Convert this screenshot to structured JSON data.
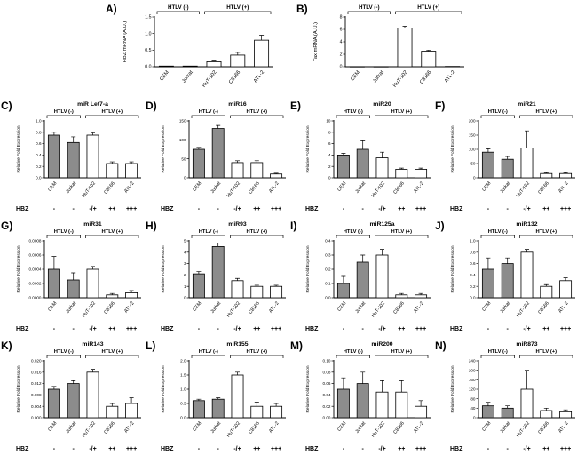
{
  "figure": {
    "background": "#ffffff",
    "hbz_annotation": {
      "label": "HBZ",
      "values": [
        "-",
        "-",
        "-/+",
        "++",
        "+++"
      ]
    },
    "colors": {
      "bar_gray": "#8c8c8c",
      "bar_white": "#ffffff",
      "axis": "#000000"
    }
  },
  "chart_data": [
    {
      "panel": "A)",
      "row": 0,
      "size": "large",
      "type": "bar",
      "title": "",
      "ylabel": "HBZ mRNA (A.U.)",
      "categories": [
        "CEM",
        "Jurkat",
        "HuT-102",
        "C8166",
        "ATL-2"
      ],
      "values": [
        0.02,
        0.02,
        0.15,
        0.35,
        0.8
      ],
      "errors": [
        0,
        0,
        0.02,
        0.08,
        0.15
      ],
      "ylim": [
        0,
        1.5
      ],
      "yticks": [
        0,
        0.5,
        1,
        1.5
      ],
      "ytick_labels": [
        "0.0",
        "0.5",
        "1.0",
        "1.5"
      ],
      "groups": [
        {
          "label": "HTLV (-)",
          "span": [
            0,
            1
          ]
        },
        {
          "label": "HTLV (+)",
          "span": [
            2,
            4
          ]
        }
      ],
      "bar_colors": [
        "#ffffff",
        "#ffffff",
        "#ffffff",
        "#ffffff",
        "#ffffff"
      ],
      "hbz": false
    },
    {
      "panel": "B)",
      "row": 0,
      "size": "large",
      "type": "bar",
      "title": "",
      "ylabel": "Tax mRNA (A.U.)",
      "categories": [
        "CEM",
        "Jurkat",
        "HuT-102",
        "C8166",
        "ATL-2"
      ],
      "values": [
        0.02,
        0.02,
        6.2,
        2.5,
        0.05
      ],
      "errors": [
        0,
        0,
        0.3,
        0.15,
        0
      ],
      "ylim": [
        0,
        8
      ],
      "yticks": [
        0,
        2,
        4,
        6,
        8
      ],
      "ytick_labels": [
        "0",
        "2",
        "4",
        "6",
        "8"
      ],
      "groups": [
        {
          "label": "HTLV (-)",
          "span": [
            0,
            1
          ]
        },
        {
          "label": "HTLV (+)",
          "span": [
            2,
            4
          ]
        }
      ],
      "bar_colors": [
        "#ffffff",
        "#ffffff",
        "#ffffff",
        "#ffffff",
        "#ffffff"
      ],
      "hbz": false
    },
    {
      "panel": "C)",
      "row": 1,
      "size": "small",
      "type": "bar",
      "title": "miR Let7-a",
      "ylabel": "Relative Fold Expression",
      "categories": [
        "CEM",
        "Jurkat",
        "HuT-102",
        "C8166",
        "ATL-2"
      ],
      "values": [
        0.75,
        0.62,
        0.75,
        0.25,
        0.25
      ],
      "errors": [
        0.05,
        0.1,
        0.04,
        0.03,
        0.03
      ],
      "ylim": [
        0,
        1
      ],
      "yticks": [
        0,
        0.2,
        0.4,
        0.6,
        0.8,
        1
      ],
      "ytick_labels": [
        "0.0",
        "0.2",
        "0.4",
        "0.6",
        "0.8",
        "1.0"
      ],
      "groups": [
        {
          "label": "HTLV (-)",
          "span": [
            0,
            1
          ]
        },
        {
          "label": "HTLV (+)",
          "span": [
            2,
            4
          ]
        }
      ],
      "bar_colors": [
        "#8c8c8c",
        "#8c8c8c",
        "#ffffff",
        "#ffffff",
        "#ffffff"
      ],
      "hbz": true
    },
    {
      "panel": "D)",
      "row": 1,
      "size": "small",
      "type": "bar",
      "title": "miR16",
      "ylabel": "Relative Fold Expression",
      "categories": [
        "CEM",
        "Jurkat",
        "HuT-102",
        "C8166",
        "ATL-2"
      ],
      "values": [
        75,
        130,
        40,
        40,
        10
      ],
      "errors": [
        5,
        8,
        5,
        5,
        2
      ],
      "ylim": [
        0,
        150
      ],
      "yticks": [
        0,
        50,
        100,
        150
      ],
      "ytick_labels": [
        "0",
        "50",
        "100",
        "150"
      ],
      "groups": [
        {
          "label": "HTLV (-)",
          "span": [
            0,
            1
          ]
        },
        {
          "label": "HTLV (+)",
          "span": [
            2,
            4
          ]
        }
      ],
      "bar_colors": [
        "#8c8c8c",
        "#8c8c8c",
        "#ffffff",
        "#ffffff",
        "#ffffff"
      ],
      "hbz": true
    },
    {
      "panel": "E)",
      "row": 1,
      "size": "small",
      "type": "bar",
      "title": "miR20",
      "ylabel": "Relative Fold Expression",
      "categories": [
        "CEM",
        "Jurkat",
        "HuT-102",
        "C8166",
        "ATL-2"
      ],
      "values": [
        4,
        5,
        3.5,
        1.5,
        1.5
      ],
      "errors": [
        0.3,
        1.5,
        1,
        0.2,
        0.2
      ],
      "ylim": [
        0,
        10
      ],
      "yticks": [
        0,
        2,
        4,
        6,
        8,
        10
      ],
      "ytick_labels": [
        "0",
        "2",
        "4",
        "6",
        "8",
        "10"
      ],
      "groups": [
        {
          "label": "HTLV (-)",
          "span": [
            0,
            1
          ]
        },
        {
          "label": "HTLV (+)",
          "span": [
            2,
            4
          ]
        }
      ],
      "bar_colors": [
        "#8c8c8c",
        "#8c8c8c",
        "#ffffff",
        "#ffffff",
        "#ffffff"
      ],
      "hbz": true
    },
    {
      "panel": "F)",
      "row": 1,
      "size": "small",
      "type": "bar",
      "title": "miR21",
      "ylabel": "Relative Fold Expression",
      "categories": [
        "CEM",
        "Jurkat",
        "HuT-102",
        "C8166",
        "ATL-2"
      ],
      "values": [
        90,
        65,
        105,
        15,
        15
      ],
      "errors": [
        12,
        10,
        60,
        3,
        3
      ],
      "ylim": [
        0,
        200
      ],
      "yticks": [
        0,
        50,
        100,
        150,
        200
      ],
      "ytick_labels": [
        "0",
        "50",
        "100",
        "150",
        "200"
      ],
      "groups": [
        {
          "label": "HTLV (-)",
          "span": [
            0,
            1
          ]
        },
        {
          "label": "HTLV (+)",
          "span": [
            2,
            4
          ]
        }
      ],
      "bar_colors": [
        "#8c8c8c",
        "#8c8c8c",
        "#ffffff",
        "#ffffff",
        "#ffffff"
      ],
      "hbz": true
    },
    {
      "panel": "G)",
      "row": 2,
      "size": "small",
      "type": "bar",
      "title": "miR31",
      "ylabel": "Relative Fold Expression",
      "categories": [
        "CEM",
        "Jurkat",
        "HuT-102",
        "C8166",
        "ATL-2"
      ],
      "values": [
        0.0004,
        0.00025,
        0.0004,
        4e-05,
        7e-05
      ],
      "errors": [
        0.00018,
        0.0001,
        4e-05,
        2e-05,
        3e-05
      ],
      "ylim": [
        0,
        0.0008
      ],
      "yticks": [
        0,
        0.0002,
        0.0004,
        0.0006,
        0.0008
      ],
      "ytick_labels": [
        "0.0000",
        "0.0002",
        "0.0004",
        "0.0006",
        "0.0008"
      ],
      "groups": [
        {
          "label": "HTLV (-)",
          "span": [
            0,
            1
          ]
        },
        {
          "label": "HTLV (+)",
          "span": [
            2,
            4
          ]
        }
      ],
      "bar_colors": [
        "#8c8c8c",
        "#8c8c8c",
        "#ffffff",
        "#ffffff",
        "#ffffff"
      ],
      "hbz": true
    },
    {
      "panel": "H)",
      "row": 2,
      "size": "small",
      "type": "bar",
      "title": "miR93",
      "ylabel": "Relative Fold Expression",
      "categories": [
        "CEM",
        "Jurkat",
        "HuT-102",
        "C8166",
        "ATL-2"
      ],
      "values": [
        2.1,
        4.5,
        1.5,
        1,
        1
      ],
      "errors": [
        0.2,
        0.3,
        0.2,
        0.1,
        0.1
      ],
      "ylim": [
        0,
        5
      ],
      "yticks": [
        0,
        1,
        2,
        3,
        4,
        5
      ],
      "ytick_labels": [
        "0",
        "1",
        "2",
        "3",
        "4",
        "5"
      ],
      "groups": [
        {
          "label": "HTLV (-)",
          "span": [
            0,
            1
          ]
        },
        {
          "label": "HTLV (+)",
          "span": [
            2,
            4
          ]
        }
      ],
      "bar_colors": [
        "#8c8c8c",
        "#8c8c8c",
        "#ffffff",
        "#ffffff",
        "#ffffff"
      ],
      "hbz": true
    },
    {
      "panel": "I)",
      "row": 2,
      "size": "small",
      "type": "bar",
      "title": "miR125a",
      "ylabel": "Relative Fold Expression",
      "categories": [
        "CEM",
        "Jurkat",
        "HuT-102",
        "C8166",
        "ATL-2"
      ],
      "values": [
        0.1,
        0.25,
        0.3,
        0.02,
        0.02
      ],
      "errors": [
        0.05,
        0.05,
        0.04,
        0.01,
        0.01
      ],
      "ylim": [
        0,
        0.4
      ],
      "yticks": [
        0,
        0.1,
        0.2,
        0.3,
        0.4
      ],
      "ytick_labels": [
        "0.0",
        "0.1",
        "0.2",
        "0.3",
        "0.4"
      ],
      "groups": [
        {
          "label": "HTLV (-)",
          "span": [
            0,
            1
          ]
        },
        {
          "label": "HTLV (+)",
          "span": [
            2,
            4
          ]
        }
      ],
      "bar_colors": [
        "#8c8c8c",
        "#8c8c8c",
        "#ffffff",
        "#ffffff",
        "#ffffff"
      ],
      "hbz": true
    },
    {
      "panel": "J)",
      "row": 2,
      "size": "small",
      "type": "bar",
      "title": "miR132",
      "ylabel": "Relative Fold Expression",
      "categories": [
        "CEM",
        "Jurkat",
        "HuT-102",
        "C8166",
        "ATL-2"
      ],
      "values": [
        0.5,
        0.6,
        0.8,
        0.2,
        0.3
      ],
      "errors": [
        0.2,
        0.1,
        0.05,
        0.03,
        0.05
      ],
      "ylim": [
        0,
        1
      ],
      "yticks": [
        0,
        0.2,
        0.4,
        0.6,
        0.8,
        1
      ],
      "ytick_labels": [
        "0.0",
        "0.2",
        "0.4",
        "0.6",
        "0.8",
        "1.0"
      ],
      "groups": [
        {
          "label": "HTLV (-)",
          "span": [
            0,
            1
          ]
        },
        {
          "label": "HTLV (+)",
          "span": [
            2,
            4
          ]
        }
      ],
      "bar_colors": [
        "#8c8c8c",
        "#8c8c8c",
        "#ffffff",
        "#ffffff",
        "#ffffff"
      ],
      "hbz": true
    },
    {
      "panel": "K)",
      "row": 3,
      "size": "small",
      "type": "bar",
      "title": "miR143",
      "ylabel": "Relative Fold Expression",
      "categories": [
        "CEM",
        "Jurkat",
        "HuT-102",
        "C8166",
        "ATL-2"
      ],
      "values": [
        0.01,
        0.012,
        0.016,
        0.004,
        0.005
      ],
      "errors": [
        0.001,
        0.001,
        0.001,
        0.001,
        0.002
      ],
      "ylim": [
        0,
        0.02
      ],
      "yticks": [
        0,
        0.004,
        0.008,
        0.012,
        0.016,
        0.02
      ],
      "ytick_labels": [
        "0.000",
        "0.004",
        "0.008",
        "0.012",
        "0.016",
        "0.020"
      ],
      "groups": [
        {
          "label": "HTLV (-)",
          "span": [
            0,
            1
          ]
        },
        {
          "label": "HTLV (+)",
          "span": [
            2,
            4
          ]
        }
      ],
      "bar_colors": [
        "#8c8c8c",
        "#8c8c8c",
        "#ffffff",
        "#ffffff",
        "#ffffff"
      ],
      "hbz": true
    },
    {
      "panel": "L)",
      "row": 3,
      "size": "small",
      "type": "bar",
      "title": "miR155",
      "ylabel": "Relative Fold Expression",
      "categories": [
        "CEM",
        "Jurkat",
        "HuT-102",
        "C8166",
        "ATL-2"
      ],
      "values": [
        0.6,
        0.65,
        1.5,
        0.4,
        0.4
      ],
      "errors": [
        0.05,
        0.05,
        0.1,
        0.15,
        0.1
      ],
      "ylim": [
        0,
        2
      ],
      "yticks": [
        0,
        0.5,
        1,
        1.5,
        2
      ],
      "ytick_labels": [
        "0.0",
        "0.5",
        "1.0",
        "1.5",
        "2.0"
      ],
      "groups": [
        {
          "label": "HTLV (-)",
          "span": [
            0,
            1
          ]
        },
        {
          "label": "HTLV (+)",
          "span": [
            2,
            4
          ]
        }
      ],
      "bar_colors": [
        "#8c8c8c",
        "#8c8c8c",
        "#ffffff",
        "#ffffff",
        "#ffffff"
      ],
      "hbz": true
    },
    {
      "panel": "M)",
      "row": 3,
      "size": "small",
      "type": "bar",
      "title": "miR200",
      "ylabel": "Relative Fold Expression",
      "categories": [
        "CEM",
        "Jurkat",
        "HuT-102",
        "C8166",
        "ATL-2"
      ],
      "values": [
        0.05,
        0.06,
        0.045,
        0.045,
        0.02
      ],
      "errors": [
        0.02,
        0.02,
        0.02,
        0.02,
        0.01
      ],
      "ylim": [
        0,
        0.1
      ],
      "yticks": [
        0,
        0.02,
        0.04,
        0.06,
        0.08,
        0.1
      ],
      "ytick_labels": [
        "0.00",
        "0.02",
        "0.04",
        "0.06",
        "0.08",
        "0.10"
      ],
      "groups": [
        {
          "label": "HTLV (-)",
          "span": [
            0,
            1
          ]
        },
        {
          "label": "HTLV (+)",
          "span": [
            2,
            4
          ]
        }
      ],
      "bar_colors": [
        "#8c8c8c",
        "#8c8c8c",
        "#ffffff",
        "#ffffff",
        "#ffffff"
      ],
      "hbz": true
    },
    {
      "panel": "N)",
      "row": 3,
      "size": "small",
      "type": "bar",
      "title": "miR873",
      "ylabel": "Relative Fold Expression",
      "categories": [
        "CEM",
        "Jurkat",
        "HuT-102",
        "C8166",
        "ATL-2"
      ],
      "values": [
        50,
        40,
        120,
        30,
        25
      ],
      "errors": [
        15,
        10,
        80,
        10,
        8
      ],
      "ylim": [
        0,
        240
      ],
      "yticks": [
        0,
        40,
        80,
        120,
        160,
        200,
        240
      ],
      "ytick_labels": [
        "0",
        "40",
        "80",
        "120",
        "160",
        "200",
        "240"
      ],
      "groups": [
        {
          "label": "HTLV (-)",
          "span": [
            0,
            1
          ]
        },
        {
          "label": "HTLV (+)",
          "span": [
            2,
            4
          ]
        }
      ],
      "bar_colors": [
        "#8c8c8c",
        "#8c8c8c",
        "#ffffff",
        "#ffffff",
        "#ffffff"
      ],
      "hbz": true
    }
  ]
}
